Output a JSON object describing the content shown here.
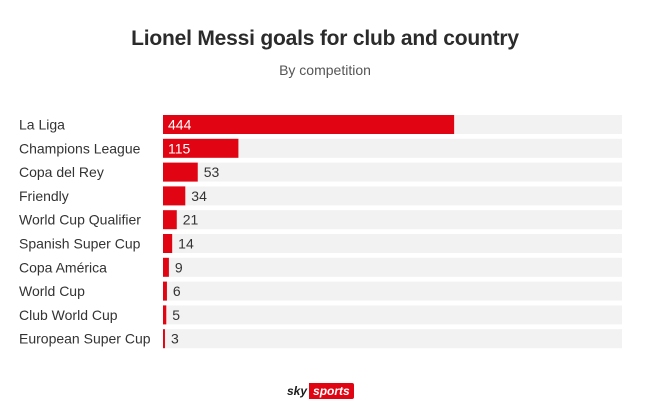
{
  "header": {
    "title": "Lionel Messi goals for club and country",
    "subtitle": "By competition"
  },
  "colors": {
    "bar": "#e10514",
    "track": "#f2f2f2",
    "label_inside": "#ffffff",
    "label_outside": "#333333"
  },
  "chart_data": {
    "type": "bar",
    "orientation": "horizontal",
    "title": "Lionel Messi goals for club and country",
    "subtitle": "By competition",
    "categories": [
      "La Liga",
      "Champions League",
      "Copa del Rey",
      "Friendly",
      "World Cup Qualifier",
      "Spanish Super Cup",
      "Copa América",
      "World Cup",
      "Club World Cup",
      "European Super Cup"
    ],
    "values": [
      444,
      115,
      53,
      34,
      21,
      14,
      9,
      6,
      5,
      3
    ],
    "xlim": [
      0,
      700
    ],
    "grid": false,
    "legend": "none"
  },
  "footer": {
    "logo_sky": "sky",
    "logo_sports": "sports"
  }
}
